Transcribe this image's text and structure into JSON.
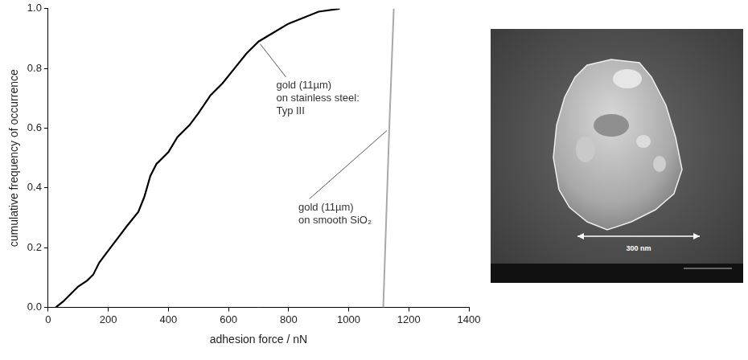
{
  "chart_data": {
    "type": "line",
    "xlabel": "adhesion force / nN",
    "ylabel": "cumulative frequency of occurrence",
    "xlim": [
      0,
      1400
    ],
    "xticks": [
      0,
      200,
      400,
      600,
      800,
      1000,
      1200,
      1400
    ],
    "ylim": [
      0,
      1
    ],
    "yticks": [
      {
        "value": 0,
        "label": "0.0"
      },
      {
        "value": 0.2,
        "label": "0.2"
      },
      {
        "value": 0.4,
        "label": "0.4"
      },
      {
        "value": 0.6,
        "label": "0.6"
      },
      {
        "value": 0.8,
        "label": "0.8"
      },
      {
        "value": 1,
        "label": "1.0"
      }
    ],
    "grid": false,
    "series": [
      {
        "annotation": [
          "gold (11µm)",
          "on stainless steel:",
          "Typ III"
        ],
        "color": "#000000",
        "x": [
          25,
          50,
          80,
          100,
          130,
          150,
          170,
          200,
          230,
          260,
          300,
          320,
          340,
          360,
          400,
          430,
          470,
          500,
          540,
          580,
          620,
          660,
          700,
          750,
          800,
          850,
          900,
          970
        ],
        "values": [
          0,
          0.02,
          0.05,
          0.07,
          0.09,
          0.11,
          0.15,
          0.19,
          0.23,
          0.27,
          0.32,
          0.37,
          0.44,
          0.48,
          0.52,
          0.57,
          0.61,
          0.65,
          0.71,
          0.75,
          0.8,
          0.85,
          0.89,
          0.92,
          0.95,
          0.97,
          0.99,
          1
        ]
      },
      {
        "annotation": [
          "gold (11µm)",
          "on smooth SiO₂"
        ],
        "color": "#a8a8a8",
        "x": [
          1115,
          1125,
          1135,
          1150
        ],
        "values": [
          0,
          0.3,
          0.6,
          1
        ]
      }
    ]
  },
  "image": {
    "scale_label": "300 nm"
  }
}
